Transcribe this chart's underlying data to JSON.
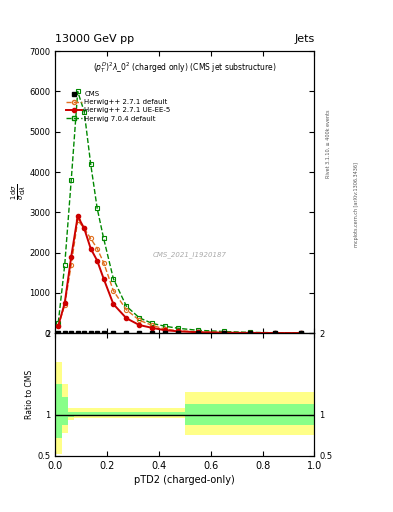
{
  "title_top": "13000 GeV pp",
  "title_right": "Jets",
  "plot_title": "$(p_T^D)^2\\lambda\\_0^2$ (charged only) (CMS jet substructure)",
  "right_label_top": "Rivet 3.1.10, ≥ 400k events",
  "right_label_bottom": "mcplots.cern.ch [arXiv:1306.3436]",
  "watermark": "CMS_2021_I1920187",
  "xlabel": "pTD2 (charged-only)",
  "ratio_ylabel": "Ratio to CMS",
  "xlim": [
    0,
    1
  ],
  "ylim_main": [
    0,
    7000
  ],
  "ylim_ratio": [
    0.5,
    2.0
  ],
  "yticks_main": [
    0,
    1000,
    2000,
    3000,
    4000,
    5000,
    6000,
    7000
  ],
  "ytick_labels_main": [
    "0",
    "1000",
    "2000",
    "3000",
    "4000",
    "5000",
    "6000",
    "7000"
  ],
  "yticks_ratio": [
    0.5,
    1,
    2
  ],
  "ytick_labels_ratio": [
    "0.5",
    "1",
    "2"
  ],
  "cms_x": [
    0.0125,
    0.0375,
    0.0625,
    0.0875,
    0.1125,
    0.1375,
    0.1625,
    0.1875,
    0.225,
    0.275,
    0.325,
    0.375,
    0.425,
    0.475,
    0.55,
    0.65,
    0.75,
    0.85,
    0.95
  ],
  "cms_y": [
    0,
    0,
    0,
    0,
    0,
    0,
    0,
    0,
    0,
    0,
    0,
    0,
    0,
    0,
    0,
    0,
    0,
    0,
    0
  ],
  "herwig271_x": [
    0.0125,
    0.0375,
    0.0625,
    0.0875,
    0.1125,
    0.1375,
    0.1625,
    0.1875,
    0.225,
    0.275,
    0.325,
    0.375,
    0.425,
    0.475,
    0.55,
    0.65,
    0.75,
    0.85,
    0.95
  ],
  "herwig271_y": [
    180,
    700,
    1700,
    2800,
    2600,
    2350,
    2100,
    1750,
    1050,
    580,
    320,
    190,
    100,
    60,
    30,
    15,
    8,
    4,
    2
  ],
  "herwig271ue_x": [
    0.0125,
    0.0375,
    0.0625,
    0.0875,
    0.1125,
    0.1375,
    0.1625,
    0.1875,
    0.225,
    0.275,
    0.325,
    0.375,
    0.425,
    0.475,
    0.55,
    0.65,
    0.75,
    0.85,
    0.95
  ],
  "herwig271ue_y": [
    180,
    750,
    1900,
    2900,
    2600,
    2100,
    1800,
    1350,
    720,
    370,
    200,
    130,
    70,
    45,
    22,
    10,
    5,
    2,
    1
  ],
  "herwig704_x": [
    0.0125,
    0.0375,
    0.0625,
    0.0875,
    0.1125,
    0.1375,
    0.1625,
    0.1875,
    0.225,
    0.275,
    0.325,
    0.375,
    0.425,
    0.475,
    0.55,
    0.65,
    0.75,
    0.85,
    0.95
  ],
  "herwig704_y": [
    260,
    1700,
    3800,
    6000,
    5500,
    4200,
    3100,
    2350,
    1350,
    670,
    380,
    240,
    170,
    120,
    70,
    40,
    18,
    10,
    5
  ],
  "ratio_bin_edges": [
    0.0,
    0.025,
    0.05,
    0.075,
    0.1,
    0.125,
    0.15,
    0.175,
    0.2,
    0.25,
    0.3,
    0.35,
    0.4,
    0.45,
    0.5,
    0.6,
    0.7,
    0.8,
    0.9,
    1.0
  ],
  "ratio_yellow_lower": [
    0.52,
    0.78,
    0.94,
    0.96,
    0.96,
    0.96,
    0.96,
    0.96,
    0.96,
    0.96,
    0.96,
    0.96,
    0.96,
    0.96,
    0.75,
    0.75,
    0.75,
    0.75,
    0.75
  ],
  "ratio_yellow_upper": [
    1.65,
    1.38,
    1.08,
    1.08,
    1.08,
    1.08,
    1.08,
    1.08,
    1.08,
    1.08,
    1.08,
    1.08,
    1.08,
    1.08,
    1.28,
    1.28,
    1.28,
    1.28,
    1.28
  ],
  "ratio_green_lower": [
    0.72,
    0.88,
    0.97,
    0.98,
    0.98,
    0.98,
    0.98,
    0.98,
    0.98,
    0.98,
    0.98,
    0.98,
    0.98,
    0.98,
    0.87,
    0.87,
    0.87,
    0.87,
    0.87
  ],
  "ratio_green_upper": [
    1.38,
    1.22,
    1.04,
    1.04,
    1.04,
    1.04,
    1.04,
    1.04,
    1.04,
    1.04,
    1.04,
    1.04,
    1.04,
    1.04,
    1.13,
    1.13,
    1.13,
    1.13,
    1.13
  ],
  "color_cms": "#000000",
  "color_herwig271": "#e07020",
  "color_herwig271ue": "#cc0000",
  "color_herwig704": "#008800",
  "color_yellow": "#ffff88",
  "color_green": "#88ff88"
}
